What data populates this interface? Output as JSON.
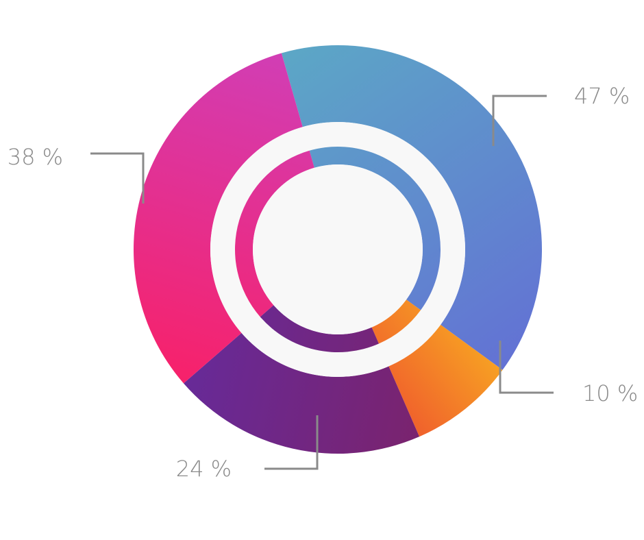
{
  "chart_data": {
    "type": "pie",
    "style": "donut with inner ring",
    "categories": [
      "",
      "",
      "",
      ""
    ],
    "values": [
      47,
      10,
      24,
      38
    ],
    "labels": [
      "47 %",
      "10 %",
      "24 %",
      "38 %"
    ],
    "colors": [
      {
        "from": "#5ca7c6",
        "to": "#6372d4"
      },
      {
        "from": "#f7a023",
        "to": "#f0612c"
      },
      {
        "from": "#7a236e",
        "to": "#672a98"
      },
      {
        "from": "#f7216a",
        "to": "#d13eb5"
      }
    ],
    "leader_color": "#8a8a8a",
    "center_color": "#f8f8f8",
    "legend": "none"
  }
}
